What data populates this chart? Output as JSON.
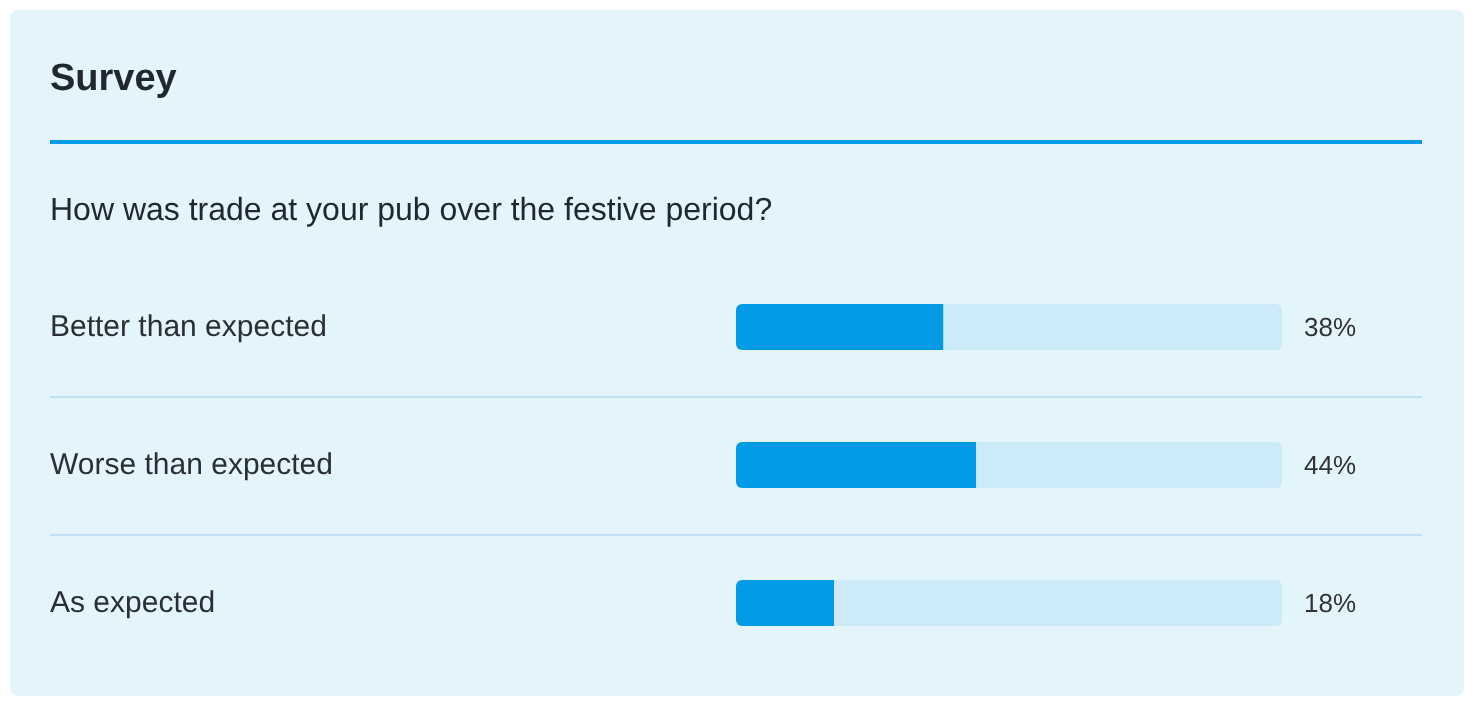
{
  "chart_data": {
    "type": "bar",
    "orientation": "horizontal",
    "stacked": true,
    "title": "Survey",
    "subtitle": "How was trade at your pub over the festive period?",
    "categories": [
      "Better than expected",
      "Worse than expected",
      "As expected"
    ],
    "series": [
      {
        "color": "#039be5",
        "values": [
          38,
          44,
          18
        ],
        "value_labels": [
          "38%",
          "44%",
          "18%"
        ]
      },
      {
        "color": "#cdeaf8",
        "values": [
          62,
          56,
          82
        ]
      }
    ],
    "xlim": [
      0,
      100
    ],
    "tick_labels": "y",
    "grid": "y"
  }
}
